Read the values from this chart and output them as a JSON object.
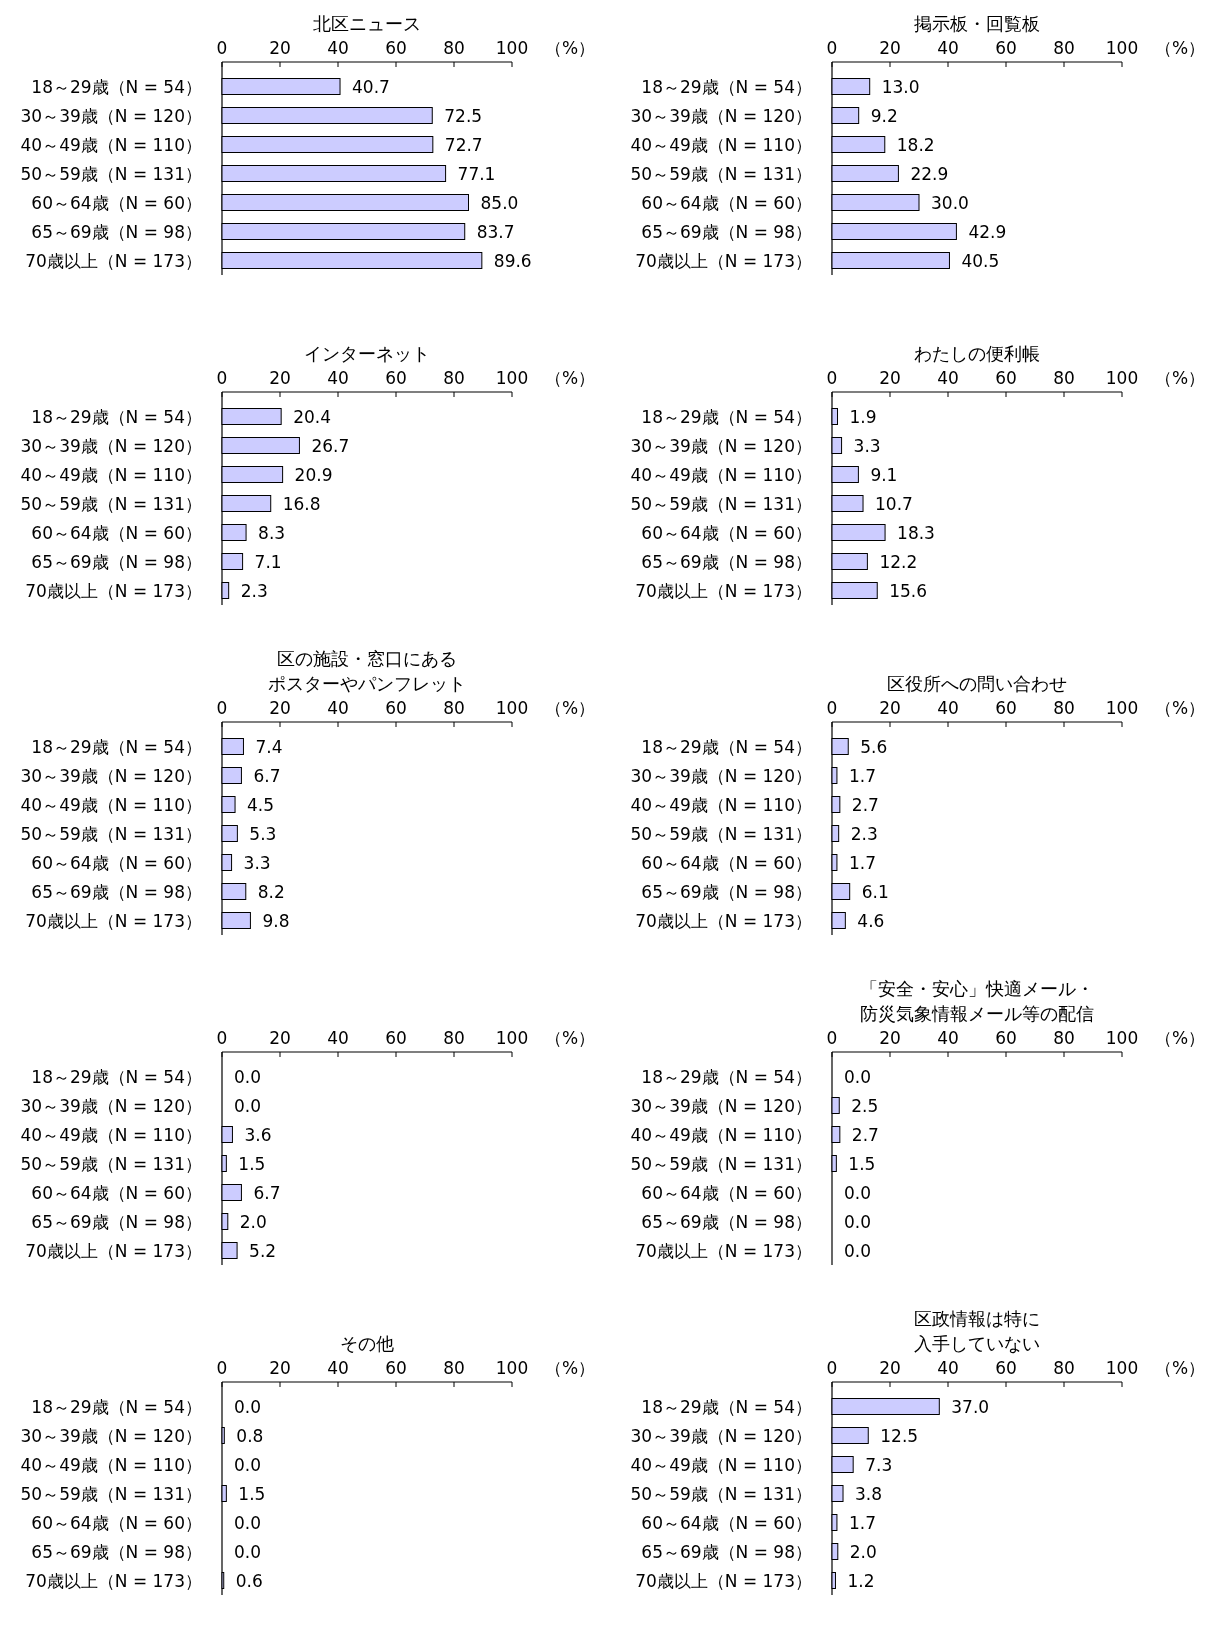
{
  "chart_data": [
    {
      "type": "bar",
      "orientation": "horizontal",
      "title": "北区ニュース",
      "xlabel": "（%）",
      "categories": [
        "18～29歳（N = 54）",
        "30～39歳（N = 120）",
        "40～49歳（N = 110）",
        "50～59歳（N = 131）",
        "60～64歳（N = 60）",
        "65～69歳（N = 98）",
        "70歳以上（N = 173）"
      ],
      "values": [
        40.7,
        72.5,
        72.7,
        77.1,
        85.0,
        83.7,
        89.6
      ],
      "value_labels": [
        "40.7",
        "72.5",
        "72.7",
        "77.1",
        "85.0",
        "83.7",
        "89.6"
      ],
      "color": "#ccccff",
      "xlim": [
        0,
        100
      ],
      "xticks": [
        0,
        20,
        40,
        60,
        80,
        100
      ]
    },
    {
      "type": "bar",
      "orientation": "horizontal",
      "title": "掲示板・回覧板",
      "xlabel": "（%）",
      "categories": [
        "18～29歳（N = 54）",
        "30～39歳（N = 120）",
        "40～49歳（N = 110）",
        "50～59歳（N = 131）",
        "60～64歳（N = 60）",
        "65～69歳（N = 98）",
        "70歳以上（N = 173）"
      ],
      "values": [
        13.0,
        9.2,
        18.2,
        22.9,
        30.0,
        42.9,
        40.5
      ],
      "value_labels": [
        "13.0",
        "9.2",
        "18.2",
        "22.9",
        "30.0",
        "42.9",
        "40.5"
      ],
      "color": "#ccccff",
      "xlim": [
        0,
        100
      ],
      "xticks": [
        0,
        20,
        40,
        60,
        80,
        100
      ]
    },
    {
      "type": "bar",
      "orientation": "horizontal",
      "title": "インターネット",
      "xlabel": "（%）",
      "categories": [
        "18～29歳（N = 54）",
        "30～39歳（N = 120）",
        "40～49歳（N = 110）",
        "50～59歳（N = 131）",
        "60～64歳（N = 60）",
        "65～69歳（N = 98）",
        "70歳以上（N = 173）"
      ],
      "values": [
        20.4,
        26.7,
        20.9,
        16.8,
        8.3,
        7.1,
        2.3
      ],
      "value_labels": [
        "20.4",
        "26.7",
        "20.9",
        "16.8",
        "8.3",
        "7.1",
        "2.3"
      ],
      "color": "#ccccff",
      "xlim": [
        0,
        100
      ],
      "xticks": [
        0,
        20,
        40,
        60,
        80,
        100
      ]
    },
    {
      "type": "bar",
      "orientation": "horizontal",
      "title": "わたしの便利帳",
      "xlabel": "（%）",
      "categories": [
        "18～29歳（N = 54）",
        "30～39歳（N = 120）",
        "40～49歳（N = 110）",
        "50～59歳（N = 131）",
        "60～64歳（N = 60）",
        "65～69歳（N = 98）",
        "70歳以上（N = 173）"
      ],
      "values": [
        1.9,
        3.3,
        9.1,
        10.7,
        18.3,
        12.2,
        15.6
      ],
      "value_labels": [
        "1.9",
        "3.3",
        "9.1",
        "10.7",
        "18.3",
        "12.2",
        "15.6"
      ],
      "color": "#ccccff",
      "xlim": [
        0,
        100
      ],
      "xticks": [
        0,
        20,
        40,
        60,
        80,
        100
      ]
    },
    {
      "type": "bar",
      "orientation": "horizontal",
      "title": "区の施設・窓口にあるポスターやパンフレット",
      "xlabel": "（%）",
      "categories": [
        "18～29歳（N = 54）",
        "30～39歳（N = 120）",
        "40～49歳（N = 110）",
        "50～59歳（N = 131）",
        "60～64歳（N = 60）",
        "65～69歳（N = 98）",
        "70歳以上（N = 173）"
      ],
      "values": [
        7.4,
        6.7,
        4.5,
        5.3,
        3.3,
        8.2,
        9.8
      ],
      "value_labels": [
        "7.4",
        "6.7",
        "4.5",
        "5.3",
        "3.3",
        "8.2",
        "9.8"
      ],
      "color": "#ccccff",
      "xlim": [
        0,
        100
      ],
      "xticks": [
        0,
        20,
        40,
        60,
        80,
        100
      ]
    },
    {
      "type": "bar",
      "orientation": "horizontal",
      "title": "区役所への問い合わせ",
      "xlabel": "（%）",
      "categories": [
        "18～29歳（N = 54）",
        "30～39歳（N = 120）",
        "40～49歳（N = 110）",
        "50～59歳（N = 131）",
        "60～64歳（N = 60）",
        "65～69歳（N = 98）",
        "70歳以上（N = 173）"
      ],
      "values": [
        5.6,
        1.7,
        2.7,
        2.3,
        1.7,
        6.1,
        4.6
      ],
      "value_labels": [
        "5.6",
        "1.7",
        "2.7",
        "2.3",
        "1.7",
        "6.1",
        "4.6"
      ],
      "color": "#ccccff",
      "xlim": [
        0,
        100
      ],
      "xticks": [
        0,
        20,
        40,
        60,
        80,
        100
      ]
    },
    {
      "type": "bar",
      "orientation": "horizontal",
      "xlabel": "（%）",
      "categories": [
        "18～29歳（N = 54）",
        "30～39歳（N = 120）",
        "40～49歳（N = 110）",
        "50～59歳（N = 131）",
        "60～64歳（N = 60）",
        "65～69歳（N = 98）",
        "70歳以上（N = 173）"
      ],
      "values": [
        0.0,
        0.0,
        3.6,
        1.5,
        6.7,
        2.0,
        5.2
      ],
      "value_labels": [
        "0.0",
        "0.0",
        "3.6",
        "1.5",
        "6.7",
        "2.0",
        "5.2"
      ],
      "color": "#ccccff",
      "xlim": [
        0,
        100
      ],
      "xticks": [
        0,
        20,
        40,
        60,
        80,
        100
      ]
    },
    {
      "type": "bar",
      "orientation": "horizontal",
      "title": "「安全・安心」快適メール・防災気象情報メール等の配信",
      "xlabel": "（%）",
      "categories": [
        "18～29歳（N = 54）",
        "30～39歳（N = 120）",
        "40～49歳（N = 110）",
        "50～59歳（N = 131）",
        "60～64歳（N = 60）",
        "65～69歳（N = 98）",
        "70歳以上（N = 173）"
      ],
      "values": [
        0.0,
        2.5,
        2.7,
        1.5,
        0.0,
        0.0,
        0.0
      ],
      "value_labels": [
        "0.0",
        "2.5",
        "2.7",
        "1.5",
        "0.0",
        "0.0",
        "0.0"
      ],
      "color": "#ccccff",
      "xlim": [
        0,
        100
      ],
      "xticks": [
        0,
        20,
        40,
        60,
        80,
        100
      ]
    },
    {
      "type": "bar",
      "orientation": "horizontal",
      "title": "その他",
      "xlabel": "（%）",
      "categories": [
        "18～29歳（N = 54）",
        "30～39歳（N = 120）",
        "40～49歳（N = 110）",
        "50～59歳（N = 131）",
        "60～64歳（N = 60）",
        "65～69歳（N = 98）",
        "70歳以上（N = 173）"
      ],
      "values": [
        0.0,
        0.8,
        0.0,
        1.5,
        0.0,
        0.0,
        0.6
      ],
      "value_labels": [
        "0.0",
        "0.8",
        "0.0",
        "1.5",
        "0.0",
        "0.0",
        "0.6"
      ],
      "color": "#ccccff",
      "xlim": [
        0,
        100
      ],
      "xticks": [
        0,
        20,
        40,
        60,
        80,
        100
      ]
    },
    {
      "type": "bar",
      "orientation": "horizontal",
      "title": "区政情報は特に入手していない",
      "xlabel": "（%）",
      "categories": [
        "18～29歳（N = 54）",
        "30～39歳（N = 120）",
        "40～49歳（N = 110）",
        "50～59歳（N = 131）",
        "60～64歳（N = 60）",
        "65～69歳（N = 98）",
        "70歳以上（N = 173）"
      ],
      "values": [
        37.0,
        12.5,
        7.3,
        3.8,
        1.7,
        2.0,
        1.2
      ],
      "value_labels": [
        "37.0",
        "12.5",
        "7.3",
        "3.8",
        "1.7",
        "2.0",
        "1.2"
      ],
      "color": "#ccccff",
      "xlim": [
        0,
        100
      ],
      "xticks": [
        0,
        20,
        40,
        60,
        80,
        100
      ]
    }
  ]
}
